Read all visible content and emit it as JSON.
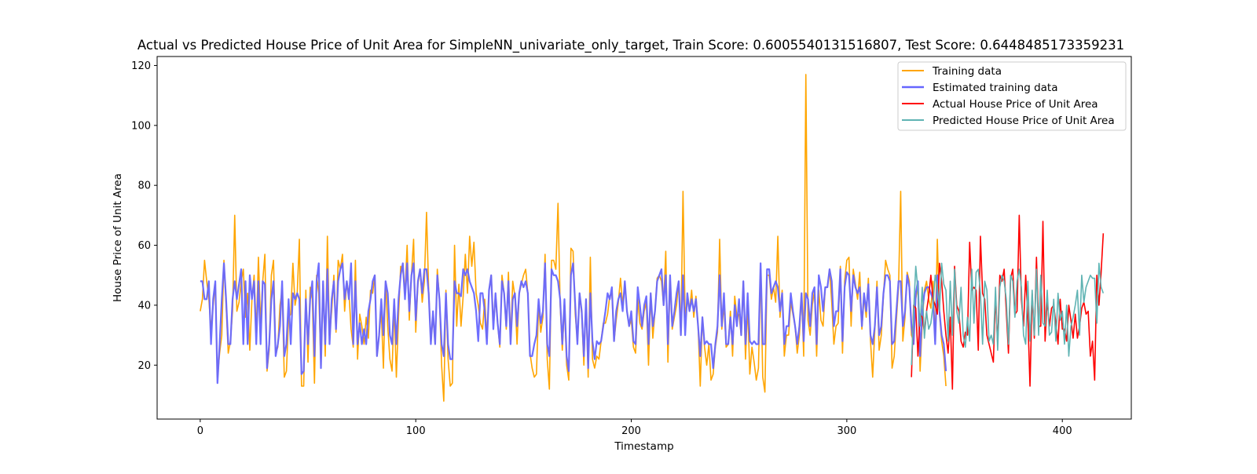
{
  "chart_data": {
    "type": "line",
    "title": "Actual vs Predicted House Price of Unit Area for SimpleNN_univariate_only_target, Train Score: 0.6005540131516807, Test Score: 0.6448485173359231",
    "xlabel": "Timestamp",
    "ylabel": "House Price of Unit Area",
    "xlim": [
      -20,
      432
    ],
    "ylim": [
      2,
      123
    ],
    "x_ticks": [
      0,
      100,
      200,
      300,
      400
    ],
    "y_ticks": [
      20,
      40,
      60,
      80,
      100,
      120
    ],
    "grid": false,
    "legend_position": "top-right",
    "series": [
      {
        "name": "Training data",
        "color": "#ffa500",
        "x_start": 0,
        "values": [
          38,
          42,
          55,
          48,
          42,
          32,
          40,
          47,
          16,
          24,
          30,
          55,
          40,
          24,
          28,
          38,
          70,
          38,
          41,
          48,
          52,
          36,
          44,
          25,
          42,
          50,
          31,
          56,
          34,
          48,
          57,
          18,
          25,
          50,
          55,
          24,
          26,
          40,
          45,
          16,
          18,
          36,
          37,
          54,
          40,
          44,
          62,
          13,
          13,
          45,
          21,
          46,
          42,
          14,
          50,
          44,
          20,
          47,
          23,
          63,
          30,
          38,
          50,
          31,
          55,
          52,
          57,
          38,
          48,
          44,
          32,
          26,
          55,
          22,
          37,
          33,
          27,
          36,
          29,
          45,
          44,
          50,
          23,
          30,
          38,
          19,
          48,
          33,
          22,
          18,
          40,
          16,
          36,
          53,
          52,
          44,
          60,
          35,
          50,
          62,
          31,
          47,
          52,
          41,
          48,
          71,
          45,
          28,
          36,
          27,
          52,
          42,
          20,
          8,
          45,
          22,
          13,
          14,
          60,
          33,
          47,
          33,
          43,
          57,
          44,
          63,
          53,
          61,
          44,
          40,
          34,
          32,
          42,
          29,
          45,
          50,
          35,
          42,
          34,
          26,
          50,
          44,
          32,
          51,
          28,
          48,
          43,
          27,
          44,
          47,
          50,
          52,
          44,
          24,
          19,
          16,
          17,
          40,
          31,
          36,
          57,
          22,
          12,
          55,
          55,
          52,
          74,
          40,
          25,
          40,
          20,
          15,
          59,
          58,
          37,
          28,
          44,
          37,
          20,
          42,
          16,
          56,
          22,
          19,
          23,
          22,
          28,
          34,
          34,
          37,
          43,
          44,
          28,
          35,
          41,
          49,
          40,
          47,
          38,
          33,
          35,
          26,
          24,
          42,
          34,
          32,
          38,
          41,
          20,
          44,
          29,
          38,
          49,
          50,
          48,
          40,
          58,
          21,
          48,
          32,
          36,
          40,
          48,
          30,
          78,
          36,
          42,
          38,
          45,
          36,
          43,
          33,
          13,
          36,
          26,
          20,
          27,
          15,
          17,
          26,
          31,
          62,
          32,
          40,
          26,
          27,
          38,
          23,
          43,
          36,
          37,
          30,
          48,
          22,
          40,
          17,
          26,
          21,
          15,
          19,
          52,
          16,
          11,
          50,
          50,
          42,
          46,
          41,
          63,
          36,
          45,
          23,
          30,
          30,
          41,
          37,
          33,
          24,
          30,
          44,
          23,
          117,
          35,
          30,
          40,
          45,
          23,
          45,
          35,
          33,
          46,
          46,
          52,
          41,
          27,
          33,
          34,
          53,
          24,
          48,
          55,
          56,
          33,
          52,
          47,
          42,
          51,
          32,
          43,
          36,
          49,
          28,
          16,
          32,
          48,
          25,
          30,
          43,
          55,
          52,
          50,
          19,
          23,
          35,
          46,
          78,
          28,
          36,
          51,
          48,
          30,
          28,
          42,
          47,
          18,
          34,
          45,
          48,
          42,
          39,
          48,
          28,
          62,
          37,
          28,
          23,
          13
        ]
      },
      {
        "name": "Estimated training data",
        "color": "#6666ff",
        "x_start": 0,
        "values": [
          48,
          48,
          42,
          42,
          48,
          27,
          42,
          48,
          14,
          27,
          42,
          54,
          42,
          27,
          27,
          42,
          48,
          42,
          47,
          52,
          27,
          48,
          27,
          50,
          42,
          48,
          27,
          48,
          27,
          48,
          47,
          19,
          27,
          42,
          48,
          23,
          27,
          33,
          48,
          23,
          27,
          42,
          27,
          44,
          42,
          44,
          42,
          17,
          18,
          42,
          27,
          42,
          48,
          23,
          48,
          54,
          19,
          48,
          27,
          52,
          27,
          42,
          48,
          32,
          48,
          52,
          54,
          42,
          48,
          42,
          54,
          27,
          48,
          27,
          34,
          27,
          32,
          27,
          38,
          42,
          48,
          50,
          23,
          30,
          42,
          30,
          48,
          44,
          30,
          27,
          42,
          27,
          42,
          50,
          54,
          42,
          54,
          38,
          50,
          54,
          35,
          48,
          52,
          44,
          52,
          52,
          44,
          27,
          38,
          27,
          50,
          42,
          27,
          23,
          44,
          27,
          22,
          22,
          48,
          44,
          44,
          43,
          52,
          50,
          52,
          48,
          46,
          44,
          38,
          28,
          44,
          44,
          38,
          27,
          45,
          50,
          32,
          44,
          34,
          27,
          48,
          44,
          33,
          48,
          27,
          42,
          44,
          33,
          44,
          48,
          46,
          48,
          44,
          23,
          23,
          27,
          30,
          42,
          34,
          38,
          54,
          27,
          23,
          52,
          50,
          50,
          48,
          42,
          27,
          42,
          23,
          18,
          50,
          54,
          40,
          27,
          44,
          38,
          23,
          42,
          19,
          44,
          28,
          22,
          28,
          27,
          28,
          33,
          38,
          44,
          42,
          46,
          28,
          38,
          42,
          44,
          38,
          48,
          38,
          33,
          38,
          28,
          27,
          46,
          40,
          33,
          40,
          43,
          27,
          44,
          33,
          38,
          48,
          50,
          52,
          40,
          50,
          27,
          50,
          33,
          38,
          44,
          48,
          30,
          50,
          30,
          44,
          38,
          42,
          38,
          42,
          33,
          23,
          36,
          27,
          28,
          27,
          27,
          19,
          27,
          33,
          50,
          33,
          44,
          27,
          27,
          36,
          27,
          40,
          33,
          42,
          30,
          48,
          27,
          44,
          28,
          27,
          28,
          27,
          27,
          54,
          27,
          27,
          52,
          52,
          44,
          46,
          48,
          46,
          38,
          44,
          27,
          33,
          33,
          44,
          38,
          33,
          27,
          33,
          44,
          28,
          44,
          42,
          33,
          44,
          46,
          27,
          50,
          46,
          38,
          46,
          46,
          52,
          48,
          33,
          38,
          38,
          52,
          28,
          46,
          51,
          50,
          38,
          50,
          46,
          44,
          46,
          33,
          44,
          38,
          47,
          30,
          27,
          33,
          46,
          30,
          33,
          44,
          50,
          50,
          48,
          27,
          28,
          38,
          48,
          48,
          33,
          38,
          50,
          46,
          33,
          27,
          44,
          48,
          23,
          38,
          44,
          46,
          46,
          44,
          42,
          27,
          50,
          38,
          30,
          27,
          18
        ]
      },
      {
        "name": "Actual House Price of Unit Area",
        "color": "#ff0000",
        "x_start": 330,
        "values": [
          16,
          40,
          39,
          23,
          37,
          36,
          31,
          38,
          43,
          50,
          42,
          40,
          37,
          54,
          48,
          38,
          30,
          24,
          36,
          12,
          53,
          40,
          38,
          28,
          26,
          31,
          30,
          61,
          45,
          46,
          45,
          25,
          63,
          44,
          42,
          30,
          27,
          24,
          21,
          43,
          27,
          50,
          48,
          52,
          38,
          24,
          49,
          52,
          37,
          38,
          70,
          42,
          33,
          50,
          36,
          13,
          44,
          29,
          56,
          33,
          33,
          68,
          28,
          42,
          33,
          39,
          40,
          34,
          27,
          42,
          32,
          32,
          28,
          40,
          35,
          29,
          37,
          29,
          33,
          39,
          41,
          37,
          38,
          23,
          28,
          15,
          50,
          40,
          51,
          64
        ]
      },
      {
        "name": "Predicted House Price of Unit Area",
        "color": "#5fb3b3",
        "x_start": 330,
        "values": [
          20,
          38,
          53,
          45,
          33,
          46,
          29,
          38,
          32,
          34,
          40,
          50,
          46,
          38,
          54,
          47,
          45,
          28,
          48,
          30,
          52,
          38,
          34,
          46,
          30,
          26,
          36,
          28,
          52,
          34,
          51,
          52,
          44,
          27,
          48,
          45,
          28,
          30,
          27,
          46,
          25,
          46,
          50,
          48,
          42,
          27,
          50,
          48,
          36,
          48,
          52,
          46,
          30,
          27,
          48,
          28,
          45,
          30,
          52,
          30,
          50,
          34,
          33,
          45,
          30,
          31,
          42,
          28,
          44,
          35,
          38,
          27,
          40,
          23,
          33,
          36,
          40,
          45,
          30,
          50,
          41,
          46,
          48,
          50,
          49,
          49,
          34,
          54,
          46,
          44
        ]
      }
    ]
  }
}
